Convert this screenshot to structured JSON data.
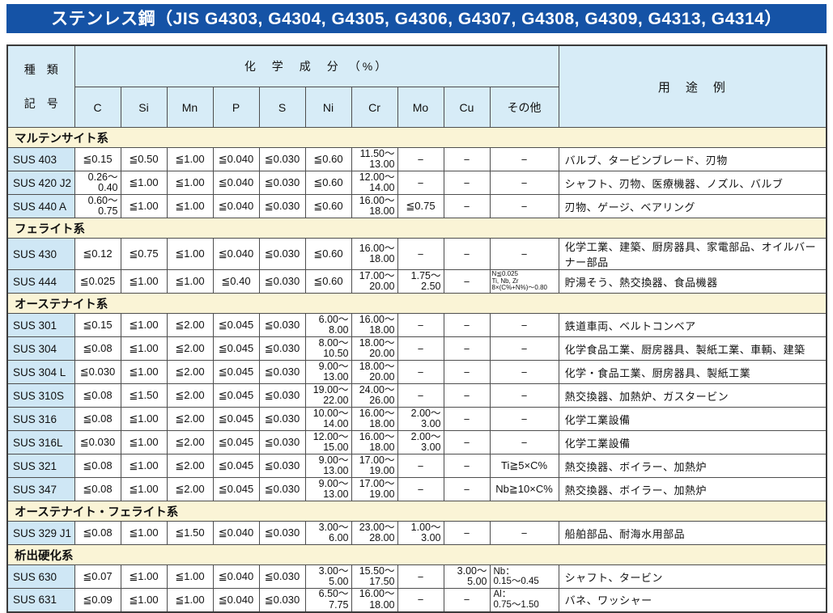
{
  "title": "ステンレス鋼（JIS G4303, G4304, G4305, G4306, G4307, G4308, G4309, G4313, G4314）",
  "table": {
    "header": {
      "kind_top": "種　類",
      "kind_bottom": "記　号",
      "chem_group": "化　学　成　分　（%）",
      "chem_cols": [
        "C",
        "Si",
        "Mn",
        "P",
        "S",
        "Ni",
        "Cr",
        "Mo",
        "Cu",
        "その他"
      ],
      "usage": "用　途　例"
    },
    "sections": [
      {
        "name": "マルテンサイト系",
        "rows": [
          {
            "code": "SUS 403",
            "cells": [
              "≦0.15",
              "≦0.50",
              "≦1.00",
              "≦0.040",
              "≦0.030",
              "≦0.60",
              "11.50～\n13.00",
              "−",
              "−",
              "−"
            ],
            "use": "バルブ、タービンブレード、刃物"
          },
          {
            "code": "SUS 420 J2",
            "cells": [
              "0.26～\n0.40",
              "≦1.00",
              "≦1.00",
              "≦0.040",
              "≦0.030",
              "≦0.60",
              "12.00～\n14.00",
              "−",
              "−",
              "−"
            ],
            "use": "シャフト、刃物、医療機器、ノズル、バルブ"
          },
          {
            "code": "SUS 440 A",
            "cells": [
              "0.60～\n0.75",
              "≦1.00",
              "≦1.00",
              "≦0.040",
              "≦0.030",
              "≦0.60",
              "16.00～\n18.00",
              "≦0.75",
              "−",
              "−"
            ],
            "use": "刃物、ゲージ、ベアリング"
          }
        ]
      },
      {
        "name": "フェライト系",
        "rows": [
          {
            "code": "SUS 430",
            "cells": [
              "≦0.12",
              "≦0.75",
              "≦1.00",
              "≦0.040",
              "≦0.030",
              "≦0.60",
              "16.00～\n18.00",
              "−",
              "−",
              "−"
            ],
            "use": "化学工業、建築、厨房器具、家電部品、オイルバーナー部品"
          },
          {
            "code": "SUS 444",
            "cells": [
              "≦0.025",
              "≦1.00",
              "≦1.00",
              "≦0.40",
              "≦0.030",
              "≦0.60",
              "17.00～\n20.00",
              "1.75～\n2.50",
              "−",
              "N≦0.025\nTi, Nb, Zr\n8×(C%+N%)～0.80"
            ],
            "use": "貯湯そう、熱交換器、食品機器"
          }
        ]
      },
      {
        "name": "オーステナイト系",
        "rows": [
          {
            "code": "SUS 301",
            "cells": [
              "≦0.15",
              "≦1.00",
              "≦2.00",
              "≦0.045",
              "≦0.030",
              "6.00～\n8.00",
              "16.00～\n18.00",
              "−",
              "−",
              "−"
            ],
            "use": "鉄道車両、ベルトコンベア"
          },
          {
            "code": "SUS 304",
            "cells": [
              "≦0.08",
              "≦1.00",
              "≦2.00",
              "≦0.045",
              "≦0.030",
              "8.00～\n10.50",
              "18.00～\n20.00",
              "−",
              "−",
              "−"
            ],
            "use": "化学食品工業、厨房器具、製紙工業、車輌、建築"
          },
          {
            "code": "SUS 304 L",
            "cells": [
              "≦0.030",
              "≦1.00",
              "≦2.00",
              "≦0.045",
              "≦0.030",
              "9.00～\n13.00",
              "18.00～\n20.00",
              "−",
              "−",
              "−"
            ],
            "use": "化学・食品工業、厨房器具、製紙工業"
          },
          {
            "code": "SUS 310S",
            "cells": [
              "≦0.08",
              "≦1.50",
              "≦2.00",
              "≦0.045",
              "≦0.030",
              "19.00～\n22.00",
              "24.00～\n26.00",
              "−",
              "−",
              "−"
            ],
            "use": "熱交換器、加熱炉、ガスタービン"
          },
          {
            "code": "SUS 316",
            "cells": [
              "≦0.08",
              "≦1.00",
              "≦2.00",
              "≦0.045",
              "≦0.030",
              "10.00～\n14.00",
              "16.00～\n18.00",
              "2.00～\n3.00",
              "−",
              "−"
            ],
            "use": "化学工業設備"
          },
          {
            "code": "SUS 316L",
            "cells": [
              "≦0.030",
              "≦1.00",
              "≦2.00",
              "≦0.045",
              "≦0.030",
              "12.00～\n15.00",
              "16.00～\n18.00",
              "2.00～\n3.00",
              "−",
              "−"
            ],
            "use": "化学工業設備"
          },
          {
            "code": "SUS 321",
            "cells": [
              "≦0.08",
              "≦1.00",
              "≦2.00",
              "≦0.045",
              "≦0.030",
              "9.00～\n13.00",
              "17.00～\n19.00",
              "−",
              "−",
              "Ti≧5×C%"
            ],
            "use": "熱交換器、ボイラー、加熱炉"
          },
          {
            "code": "SUS 347",
            "cells": [
              "≦0.08",
              "≦1.00",
              "≦2.00",
              "≦0.045",
              "≦0.030",
              "9.00～\n13.00",
              "17.00～\n19.00",
              "−",
              "−",
              "Nb≧10×C%"
            ],
            "use": "熱交換器、ボイラー、加熱炉"
          }
        ]
      },
      {
        "name": "オーステナイト・フェライト系",
        "rows": [
          {
            "code": "SUS 329 J1",
            "cells": [
              "≦0.08",
              "≦1.00",
              "≦1.50",
              "≦0.040",
              "≦0.030",
              "3.00～\n6.00",
              "23.00～\n28.00",
              "1.00～\n3.00",
              "−",
              "−"
            ],
            "use": "船舶部品、耐海水用部品"
          }
        ]
      },
      {
        "name": "析出硬化系",
        "rows": [
          {
            "code": "SUS 630",
            "cells": [
              "≦0.07",
              "≦1.00",
              "≦1.00",
              "≦0.040",
              "≦0.030",
              "3.00～\n5.00",
              "15.50～\n17.50",
              "−",
              "3.00～\n5.00",
              "Nb：\n0.15～0.45"
            ],
            "use": "シャフト、タービン"
          },
          {
            "code": "SUS 631",
            "cells": [
              "≦0.09",
              "≦1.00",
              "≦1.00",
              "≦0.040",
              "≦0.030",
              "6.50～\n7.75",
              "16.00～\n18.00",
              "−",
              "−",
              "Al：\n0.75～1.50"
            ],
            "use": "バネ、ワッシャー"
          }
        ]
      }
    ],
    "colors": {
      "title_bg": "#1553a6",
      "title_text": "#ffffff",
      "header_bg": "#d7ecf7",
      "code_bg": "#cfe7f5",
      "section_bg": "#faf4d6",
      "border": "#4e4e4e"
    }
  }
}
